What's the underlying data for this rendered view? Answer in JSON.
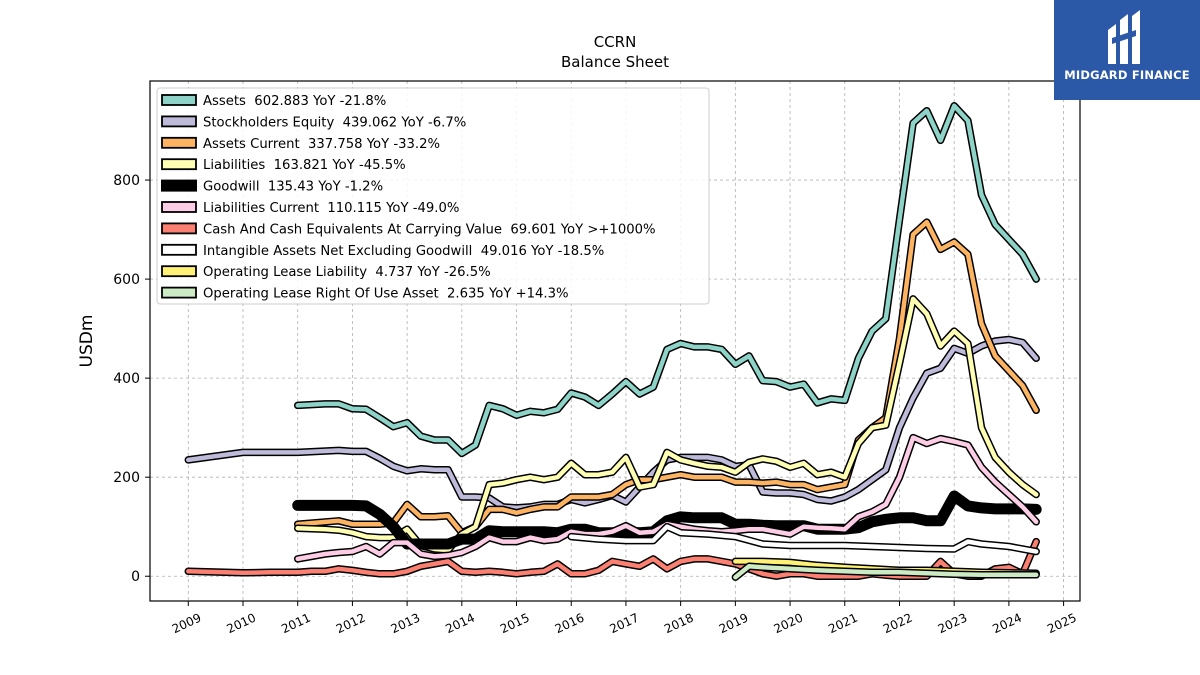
{
  "brand": {
    "name": "MIDGARD FINANCE",
    "color": "#2b58a7"
  },
  "chart_data": {
    "type": "line",
    "title": "CCRN",
    "subtitle": "Balance  Sheet",
    "ylabel": "USDm",
    "xlabel": "",
    "xlim": [
      2008.3,
      2025.3
    ],
    "ylim": [
      -50,
      1000
    ],
    "xticks": [
      2009,
      2010,
      2011,
      2012,
      2013,
      2014,
      2015,
      2016,
      2017,
      2018,
      2019,
      2020,
      2021,
      2022,
      2023,
      2024,
      2025
    ],
    "yticks": [
      0,
      200,
      400,
      600,
      800
    ],
    "grid": true,
    "legend_position": "upper-left",
    "series": [
      {
        "name": "Assets",
        "legend": "Assets  602.883 YoY -21.8%",
        "color": "#8dd3c7",
        "x": [
          2011.0,
          2011.5,
          2011.75,
          2012.0,
          2012.25,
          2012.5,
          2012.75,
          2013.0,
          2013.25,
          2013.5,
          2013.75,
          2014.0,
          2014.25,
          2014.5,
          2014.75,
          2015.0,
          2015.25,
          2015.5,
          2015.75,
          2016.0,
          2016.25,
          2016.5,
          2016.75,
          2017.0,
          2017.25,
          2017.5,
          2017.75,
          2018.0,
          2018.25,
          2018.5,
          2018.75,
          2019.0,
          2019.25,
          2019.5,
          2019.75,
          2020.0,
          2020.25,
          2020.5,
          2020.75,
          2021.0,
          2021.25,
          2021.5,
          2021.75,
          2022.0,
          2022.25,
          2022.5,
          2022.75,
          2023.0,
          2023.25,
          2023.5,
          2023.75,
          2024.0,
          2024.25,
          2024.5
        ],
        "y": [
          345,
          348,
          348,
          338,
          337,
          320,
          302,
          310,
          283,
          275,
          275,
          248,
          265,
          345,
          338,
          325,
          333,
          330,
          337,
          370,
          362,
          345,
          368,
          393,
          368,
          382,
          458,
          470,
          463,
          463,
          458,
          428,
          445,
          395,
          393,
          382,
          388,
          350,
          358,
          355,
          440,
          495,
          520,
          720,
          915,
          940,
          880,
          950,
          920,
          770,
          710,
          680,
          650,
          600
        ]
      },
      {
        "name": "Stockholders Equity",
        "legend": "Stockholders Equity  439.062 YoY -6.7%",
        "color": "#bebada",
        "x": [
          2009.0,
          2010.0,
          2011.0,
          2011.75,
          2012.0,
          2012.25,
          2012.5,
          2012.75,
          2013.0,
          2013.25,
          2013.5,
          2013.75,
          2014.0,
          2014.25,
          2014.5,
          2014.75,
          2015.0,
          2015.25,
          2015.5,
          2015.75,
          2016.0,
          2016.25,
          2016.5,
          2016.75,
          2017.0,
          2017.25,
          2017.5,
          2017.75,
          2018.0,
          2018.25,
          2018.5,
          2018.75,
          2019.0,
          2019.25,
          2019.5,
          2019.75,
          2020.0,
          2020.25,
          2020.5,
          2020.75,
          2021.0,
          2021.25,
          2021.5,
          2021.75,
          2022.0,
          2022.25,
          2022.5,
          2022.75,
          2023.0,
          2023.25,
          2023.5,
          2023.75,
          2024.0,
          2024.25,
          2024.5
        ],
        "y": [
          235,
          250,
          250,
          254,
          252,
          252,
          238,
          222,
          213,
          217,
          215,
          215,
          160,
          160,
          158,
          140,
          138,
          140,
          145,
          145,
          155,
          148,
          155,
          163,
          150,
          180,
          210,
          235,
          240,
          240,
          240,
          235,
          222,
          225,
          170,
          168,
          168,
          165,
          155,
          152,
          160,
          175,
          195,
          215,
          300,
          360,
          410,
          420,
          460,
          450,
          465,
          475,
          478,
          472,
          440
        ]
      },
      {
        "name": "Assets Current",
        "legend": "Assets Current  337.758 YoY -33.2%",
        "color": "#fdb462",
        "x": [
          2011.0,
          2011.75,
          2012.0,
          2012.25,
          2012.5,
          2012.75,
          2013.0,
          2013.25,
          2013.5,
          2013.75,
          2014.0,
          2014.25,
          2014.5,
          2014.75,
          2015.0,
          2015.25,
          2015.5,
          2015.75,
          2016.0,
          2016.25,
          2016.5,
          2016.75,
          2017.0,
          2017.25,
          2017.5,
          2017.75,
          2018.0,
          2018.25,
          2018.5,
          2018.75,
          2019.0,
          2019.25,
          2019.5,
          2019.75,
          2020.0,
          2020.25,
          2020.5,
          2020.75,
          2021.0,
          2021.25,
          2021.5,
          2021.75,
          2022.0,
          2022.25,
          2022.5,
          2022.75,
          2023.0,
          2023.25,
          2023.5,
          2023.75,
          2024.0,
          2024.25,
          2024.5
        ],
        "y": [
          105,
          112,
          105,
          105,
          105,
          108,
          145,
          120,
          120,
          122,
          88,
          100,
          135,
          135,
          128,
          135,
          140,
          140,
          160,
          160,
          160,
          165,
          185,
          195,
          195,
          200,
          205,
          200,
          200,
          200,
          190,
          190,
          188,
          190,
          185,
          185,
          175,
          180,
          185,
          275,
          300,
          320,
          480,
          690,
          715,
          660,
          675,
          650,
          510,
          445,
          415,
          385,
          335
        ]
      },
      {
        "name": "Liabilities",
        "legend": "Liabilities  163.821 YoY -45.5%",
        "color": "#ffffb3",
        "x": [
          2011.0,
          2011.5,
          2011.75,
          2012.0,
          2012.25,
          2012.5,
          2012.75,
          2013.0,
          2013.25,
          2013.5,
          2013.75,
          2014.0,
          2014.25,
          2014.5,
          2014.75,
          2015.0,
          2015.25,
          2015.5,
          2015.75,
          2016.0,
          2016.25,
          2016.5,
          2016.75,
          2017.0,
          2017.25,
          2017.5,
          2017.75,
          2018.0,
          2018.25,
          2018.5,
          2018.75,
          2019.0,
          2019.25,
          2019.5,
          2019.75,
          2020.0,
          2020.25,
          2020.5,
          2020.75,
          2021.0,
          2021.25,
          2021.5,
          2021.75,
          2022.0,
          2022.25,
          2022.5,
          2022.75,
          2023.0,
          2023.25,
          2023.5,
          2023.75,
          2024.0,
          2024.25,
          2024.5
        ],
        "y": [
          97,
          95,
          93,
          88,
          80,
          78,
          78,
          95,
          62,
          55,
          53,
          85,
          100,
          185,
          188,
          195,
          200,
          195,
          200,
          228,
          205,
          205,
          210,
          240,
          180,
          185,
          250,
          235,
          228,
          222,
          220,
          210,
          230,
          237,
          232,
          220,
          228,
          205,
          210,
          200,
          268,
          300,
          305,
          430,
          560,
          530,
          465,
          495,
          470,
          300,
          240,
          210,
          185,
          165
        ]
      },
      {
        "name": "Goodwill",
        "legend": "Goodwill  135.43 YoY -1.2%",
        "color": "#000000",
        "x": [
          2011.0,
          2011.5,
          2012.0,
          2012.25,
          2012.5,
          2012.75,
          2013.0,
          2013.25,
          2013.5,
          2013.75,
          2014.0,
          2014.25,
          2014.5,
          2014.75,
          2015.0,
          2015.25,
          2015.5,
          2015.75,
          2016.0,
          2016.25,
          2016.5,
          2016.75,
          2017.0,
          2017.25,
          2017.5,
          2017.75,
          2018.0,
          2018.25,
          2018.5,
          2018.75,
          2019.0,
          2019.25,
          2019.5,
          2019.75,
          2020.0,
          2020.25,
          2020.5,
          2020.75,
          2021.0,
          2021.25,
          2021.5,
          2021.75,
          2022.0,
          2022.25,
          2022.5,
          2022.75,
          2023.0,
          2023.25,
          2023.5,
          2023.75,
          2024.0,
          2024.25,
          2024.5
        ],
        "y": [
          143,
          143,
          143,
          142,
          125,
          100,
          65,
          65,
          65,
          65,
          75,
          75,
          92,
          90,
          90,
          90,
          90,
          88,
          95,
          95,
          88,
          88,
          90,
          88,
          90,
          112,
          120,
          118,
          118,
          118,
          105,
          105,
          103,
          102,
          102,
          102,
          95,
          95,
          95,
          98,
          110,
          115,
          118,
          118,
          112,
          112,
          162,
          142,
          138,
          136,
          136,
          136,
          135
        ]
      },
      {
        "name": "Liabilities Current",
        "legend": "Liabilities Current  110.115 YoY -49.0%",
        "color": "#fccde5",
        "x": [
          2011.0,
          2011.5,
          2011.75,
          2012.0,
          2012.25,
          2012.5,
          2012.75,
          2013.0,
          2013.25,
          2013.5,
          2013.75,
          2014.0,
          2014.25,
          2014.5,
          2014.75,
          2015.0,
          2015.25,
          2015.5,
          2015.75,
          2016.0,
          2016.25,
          2016.5,
          2016.75,
          2017.0,
          2017.25,
          2017.5,
          2017.75,
          2018.0,
          2018.25,
          2018.5,
          2018.75,
          2019.0,
          2019.25,
          2019.5,
          2019.75,
          2020.0,
          2020.25,
          2020.5,
          2020.75,
          2021.0,
          2021.25,
          2021.5,
          2021.75,
          2022.0,
          2022.25,
          2022.5,
          2022.75,
          2023.0,
          2023.25,
          2023.5,
          2023.75,
          2024.0,
          2024.25,
          2024.5
        ],
        "y": [
          35,
          45,
          48,
          50,
          60,
          45,
          68,
          68,
          45,
          40,
          42,
          48,
          60,
          78,
          70,
          70,
          78,
          72,
          75,
          90,
          85,
          85,
          90,
          102,
          88,
          90,
          105,
          100,
          95,
          92,
          90,
          92,
          95,
          95,
          90,
          85,
          100,
          98,
          97,
          95,
          120,
          130,
          145,
          200,
          280,
          268,
          278,
          272,
          265,
          220,
          190,
          165,
          140,
          110
        ]
      },
      {
        "name": "Cash And Cash Equivalents At Carrying Value",
        "legend": "Cash And Cash Equivalents At Carrying Value  69.601 YoY >+1000%",
        "color": "#fb8072",
        "x": [
          2009.0,
          2010.0,
          2010.5,
          2011.0,
          2011.25,
          2011.5,
          2011.75,
          2012.0,
          2012.25,
          2012.5,
          2012.75,
          2013.0,
          2013.25,
          2013.5,
          2013.75,
          2014.0,
          2014.25,
          2014.5,
          2014.75,
          2015.0,
          2015.25,
          2015.5,
          2015.75,
          2016.0,
          2016.25,
          2016.5,
          2016.75,
          2017.0,
          2017.25,
          2017.5,
          2017.75,
          2018.0,
          2018.25,
          2018.5,
          2018.75,
          2019.0,
          2019.25,
          2019.5,
          2019.75,
          2020.0,
          2020.25,
          2020.5,
          2020.75,
          2021.0,
          2021.25,
          2021.5,
          2021.75,
          2022.0,
          2022.25,
          2022.5,
          2022.75,
          2023.0,
          2023.25,
          2023.5,
          2023.75,
          2024.0,
          2024.25,
          2024.5
        ],
        "y": [
          10,
          7,
          8,
          8,
          10,
          10,
          15,
          12,
          8,
          5,
          5,
          10,
          20,
          25,
          30,
          10,
          8,
          10,
          8,
          5,
          8,
          10,
          25,
          5,
          5,
          12,
          30,
          25,
          20,
          35,
          15,
          30,
          35,
          35,
          30,
          25,
          15,
          5,
          0,
          5,
          5,
          0,
          0,
          0,
          0,
          5,
          2,
          0,
          0,
          0,
          30,
          5,
          0,
          0,
          15,
          18,
          5,
          70
        ]
      },
      {
        "name": "Intangible Assets Net Excluding Goodwill",
        "legend": "Intangible Assets Net Excluding Goodwill  49.016 YoY -18.5%",
        "color": "#ffffff",
        "x": [
          2016.0,
          2016.5,
          2017.0,
          2017.5,
          2017.75,
          2018.0,
          2018.5,
          2019.0,
          2019.5,
          2020.0,
          2020.5,
          2021.0,
          2021.5,
          2022.0,
          2022.5,
          2023.0,
          2023.25,
          2023.5,
          2024.0,
          2024.5
        ],
        "y": [
          80,
          75,
          72,
          72,
          100,
          88,
          85,
          80,
          65,
          62,
          62,
          62,
          60,
          58,
          56,
          55,
          70,
          65,
          60,
          50
        ]
      },
      {
        "name": "Operating Lease Liability",
        "legend": "Operating Lease Liability  4.737 YoY -26.5%",
        "color": "#fff176",
        "x": [
          2019.0,
          2019.5,
          2020.0,
          2020.5,
          2021.0,
          2021.5,
          2022.0,
          2022.5,
          2023.0,
          2023.5,
          2024.0,
          2024.5
        ],
        "y": [
          30,
          30,
          28,
          22,
          18,
          15,
          12,
          12,
          10,
          8,
          7,
          6
        ]
      },
      {
        "name": "Operating Lease Right Of Use Asset",
        "legend": "Operating Lease Right Of Use Asset  2.635 YoY +14.3%",
        "color": "#ccebc5",
        "x": [
          2019.0,
          2019.25,
          2019.5,
          2020.0,
          2020.5,
          2021.0,
          2021.5,
          2022.0,
          2022.5,
          2023.0,
          2023.5,
          2024.0,
          2024.5
        ],
        "y": [
          -2,
          20,
          18,
          15,
          12,
          10,
          8,
          8,
          6,
          4,
          3,
          3,
          3
        ]
      }
    ]
  }
}
